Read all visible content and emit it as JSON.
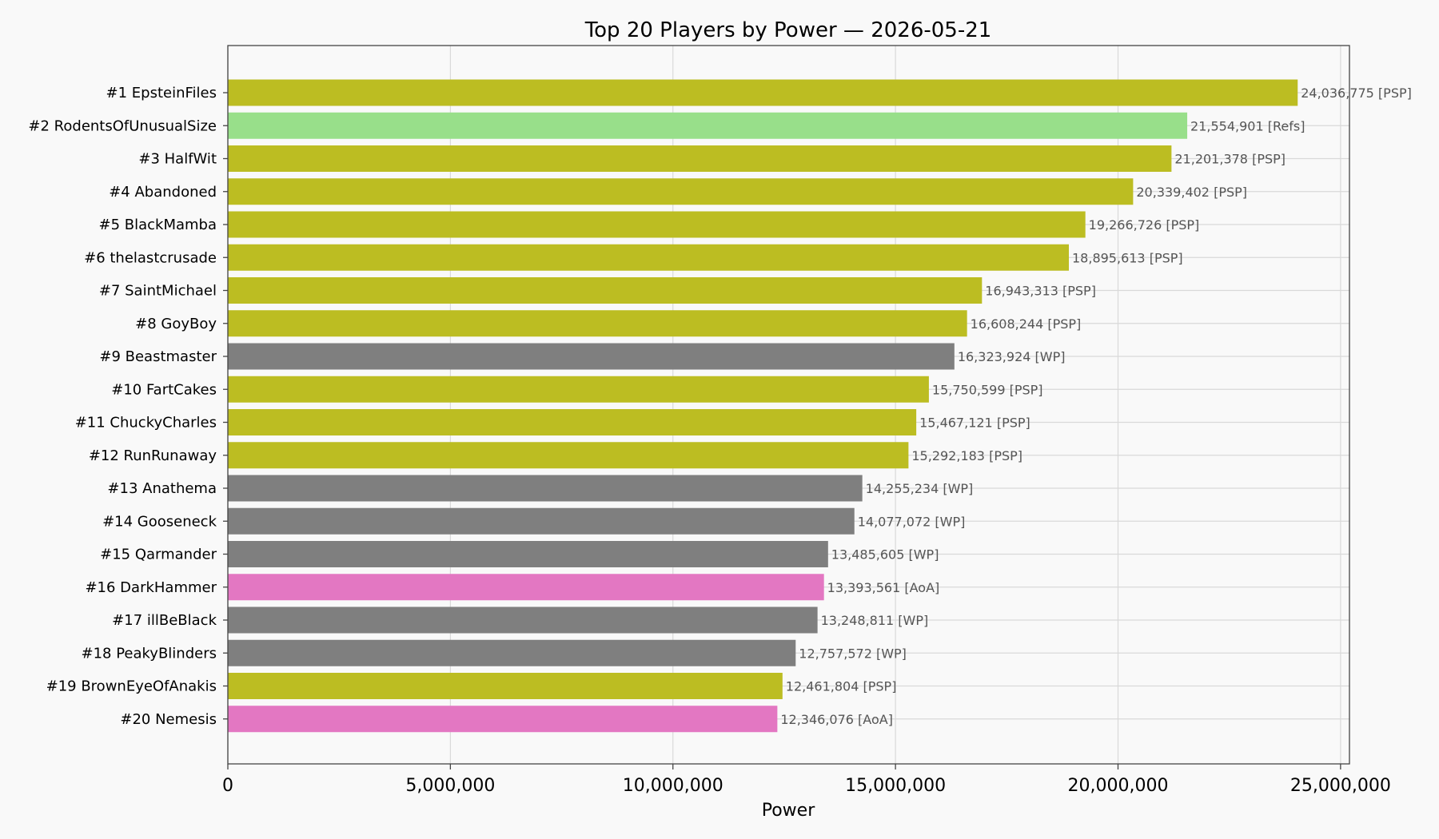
{
  "chart_data": {
    "type": "bar",
    "orientation": "horizontal",
    "title": "Top 20 Players by Power — 2026-05-21",
    "xlabel": "Power",
    "ylabel": "",
    "xlim": [
      0,
      25200000
    ],
    "xticks": [
      0,
      5000000,
      10000000,
      15000000,
      20000000,
      25000000
    ],
    "xtick_labels": [
      "0",
      "5,000,000",
      "10,000,000",
      "15,000,000",
      "20,000,000",
      "25,000,000"
    ],
    "grid": true,
    "legend": "none",
    "group_colors": {
      "PSP": "#bcbd22",
      "Refs": "#98df8a",
      "WP": "#7f7f7f",
      "AoA": "#e377c2"
    },
    "categories": [
      "#1 EpsteinFiles",
      "#2 RodentsOfUnusualSize",
      "#3 HalfWit",
      "#4 Abandoned",
      "#5 BlackMamba",
      "#6 thelastcrusade",
      "#7 SaintMichael",
      "#8 GoyBoy",
      "#9 Beastmaster",
      "#10 FartCakes",
      "#11 ChuckyCharles",
      "#12 RunRunaway",
      "#13 Anathema",
      "#14 Gooseneck",
      "#15 Qarmander",
      "#16 DarkHammer",
      "#17 illBeBlack",
      "#18 PeakyBlinders",
      "#19 BrownEyeOfAnakis",
      "#20 Nemesis"
    ],
    "values": [
      24036775,
      21554901,
      21201378,
      20339402,
      19266726,
      18895613,
      16943313,
      16608244,
      16323924,
      15750599,
      15467121,
      15292183,
      14255234,
      14077072,
      13485605,
      13393561,
      13248811,
      12757572,
      12461804,
      12346076
    ],
    "groups": [
      "PSP",
      "Refs",
      "PSP",
      "PSP",
      "PSP",
      "PSP",
      "PSP",
      "PSP",
      "WP",
      "PSP",
      "PSP",
      "PSP",
      "WP",
      "WP",
      "WP",
      "AoA",
      "WP",
      "WP",
      "PSP",
      "AoA"
    ],
    "data_labels": [
      "24,036,775  [PSP]",
      "21,554,901  [Refs]",
      "21,201,378  [PSP]",
      "20,339,402  [PSP]",
      "19,266,726  [PSP]",
      "18,895,613  [PSP]",
      "16,943,313  [PSP]",
      "16,608,244  [PSP]",
      "16,323,924  [WP]",
      "15,750,599  [PSP]",
      "15,467,121  [PSP]",
      "15,292,183  [PSP]",
      "14,255,234  [WP]",
      "14,077,072  [WP]",
      "13,485,605  [WP]",
      "13,393,561  [AoA]",
      "13,248,811  [WP]",
      "12,757,572  [WP]",
      "12,461,804  [PSP]",
      "12,346,076  [AoA]"
    ]
  }
}
